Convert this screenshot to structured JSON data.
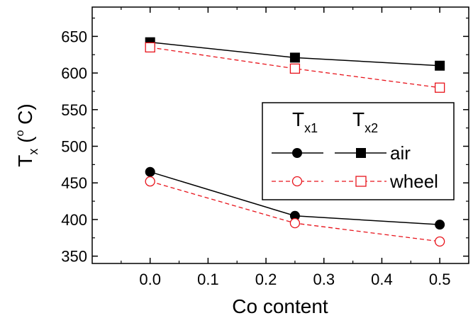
{
  "chart_data": {
    "type": "line",
    "xlabel": "Co content",
    "ylabel": {
      "main": "T",
      "sub": "x",
      "unit": " (",
      "degree": "o",
      "unit_end": " C)"
    },
    "xlim": [
      -0.1,
      0.55
    ],
    "ylim": [
      340,
      690
    ],
    "xticks": [
      0.0,
      0.1,
      0.2,
      0.3,
      0.4,
      0.5
    ],
    "xtick_labels": [
      "0.0",
      "0.1",
      "0.2",
      "0.3",
      "0.4",
      "0.5"
    ],
    "yticks": [
      350,
      400,
      450,
      500,
      550,
      600,
      650
    ],
    "ytick_labels": [
      "350",
      "400",
      "450",
      "500",
      "550",
      "600",
      "650"
    ],
    "x": [
      0.0,
      0.25,
      0.5
    ],
    "series": [
      {
        "name": "air",
        "group": "Tx1",
        "values": [
          465,
          405,
          393
        ],
        "color": "#000000",
        "marker": "filled-circle",
        "dash": "solid"
      },
      {
        "name": "wheel",
        "group": "Tx1",
        "values": [
          452,
          395,
          370
        ],
        "color": "#e8131b",
        "marker": "open-circle",
        "dash": "dashed"
      },
      {
        "name": "air",
        "group": "Tx2",
        "values": [
          642,
          621,
          610
        ],
        "color": "#000000",
        "marker": "filled-square",
        "dash": "solid"
      },
      {
        "name": "wheel",
        "group": "Tx2",
        "values": [
          635,
          606,
          580
        ],
        "color": "#e8131b",
        "marker": "open-square",
        "dash": "dashed"
      }
    ],
    "legend": {
      "placement": "right",
      "col1": {
        "main": "T",
        "sub": "x1"
      },
      "col2": {
        "main": "T",
        "sub": "x2"
      },
      "rows": [
        "air",
        "wheel"
      ]
    },
    "grid": false
  }
}
